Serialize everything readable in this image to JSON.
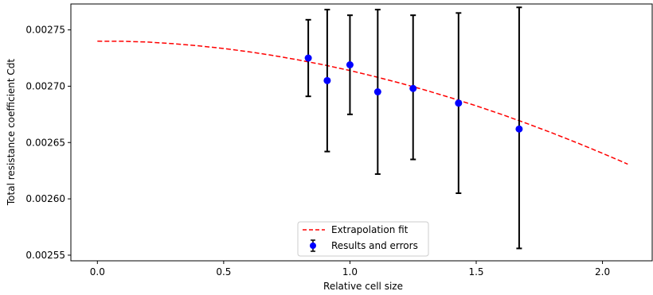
{
  "chart_data": {
    "type": "scatter",
    "title": "",
    "xlabel": "Relative cell size",
    "ylabel": "Total resistance coefficient Cdt",
    "xlim": [
      -0.105,
      2.2
    ],
    "ylim": [
      0.002545,
      0.002773
    ],
    "x_ticks": [
      0.0,
      0.5,
      1.0,
      1.5,
      2.0
    ],
    "x_tick_labels": [
      "0.0",
      "0.5",
      "1.0",
      "1.5",
      "2.0"
    ],
    "y_ticks": [
      0.00255,
      0.0026,
      0.00265,
      0.0027,
      0.00275
    ],
    "y_tick_labels": [
      "0.00255",
      "0.00260",
      "0.00265",
      "0.00270",
      "0.00275"
    ],
    "grid": false,
    "legend_position": "bottom-center",
    "series": [
      {
        "name": "Extrapolation fit",
        "kind": "line",
        "color": "#ff0000",
        "dash": true,
        "x": [
          0.0,
          0.1,
          0.2,
          0.3,
          0.4,
          0.5,
          0.6,
          0.7,
          0.8,
          0.9,
          1.0,
          1.1,
          1.2,
          1.3,
          1.4,
          1.5,
          1.6,
          1.7,
          1.8,
          1.9,
          2.0,
          2.1
        ],
        "y": [
          0.00274,
          0.0027399,
          0.0027392,
          0.0027378,
          0.0027359,
          0.0027335,
          0.0027306,
          0.0027271,
          0.0027232,
          0.0027188,
          0.0027139,
          0.0027085,
          0.0027027,
          0.0026964,
          0.0026897,
          0.0026826,
          0.002675,
          0.002667,
          0.0026586,
          0.0026497,
          0.0026404,
          0.0026308
        ]
      },
      {
        "name": "Results and errors",
        "kind": "errorbar",
        "color": "#0000ff",
        "error_color": "#000000",
        "x": [
          0.835,
          0.91,
          1.0,
          1.11,
          1.25,
          1.43,
          1.67
        ],
        "y": [
          0.002725,
          0.002705,
          0.002719,
          0.002695,
          0.002698,
          0.002685,
          0.002662
        ],
        "y_low": [
          0.002691,
          0.002642,
          0.002675,
          0.002622,
          0.002635,
          0.002605,
          0.002556
        ],
        "y_high": [
          0.002759,
          0.002768,
          0.002763,
          0.002768,
          0.002763,
          0.002765,
          0.00277
        ]
      }
    ]
  }
}
